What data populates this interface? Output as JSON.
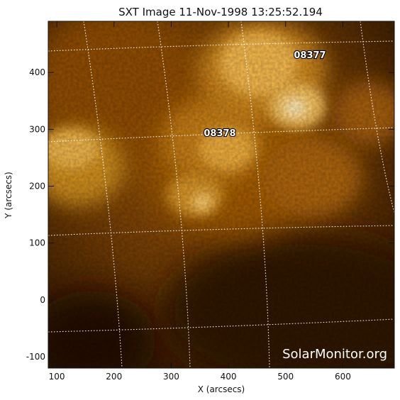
{
  "title": "SXT Image 11-Nov-1998 13:25:52.194",
  "axes": {
    "xlabel": "X (arcsecs)",
    "ylabel": "Y (arcsecs)",
    "x_ticks": [
      "100",
      "200",
      "300",
      "400",
      "500",
      "600"
    ],
    "y_ticks": [
      "-100",
      "0",
      "100",
      "200",
      "300",
      "400"
    ],
    "xlim": [
      85,
      690
    ],
    "ylim": [
      -120,
      490
    ]
  },
  "regions": [
    {
      "label": "08377",
      "x": 540,
      "y": 430
    },
    {
      "label": "08378",
      "x": 383,
      "y": 290
    }
  ],
  "watermark": "SolarMonitor.org",
  "colors": {
    "background": "#2a1400",
    "bright": "#ffd27a",
    "grid": "#ffffff"
  }
}
